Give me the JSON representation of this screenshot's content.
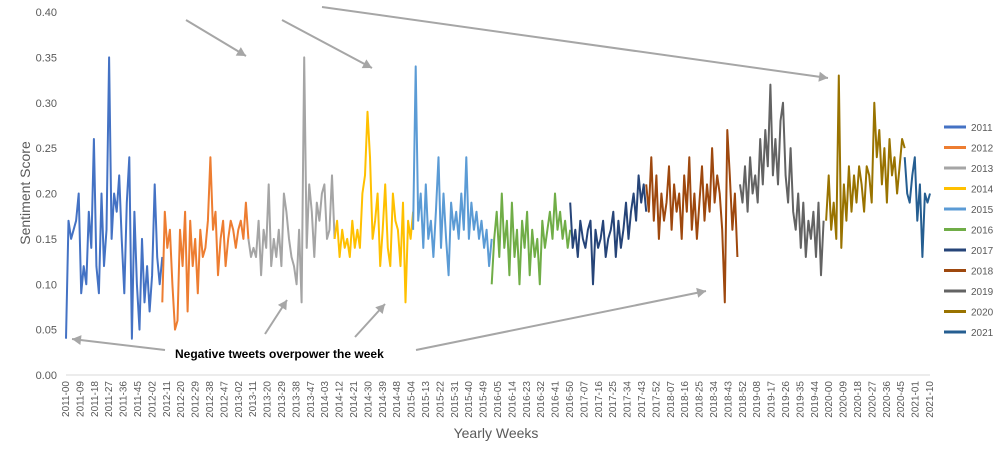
{
  "chart_data": {
    "type": "line",
    "title": "",
    "xlabel": "Yearly Weeks",
    "ylabel": "Sentiment Score",
    "ylim": [
      0,
      0.4
    ],
    "yticks": [
      "0.00",
      "0.05",
      "0.10",
      "0.15",
      "0.20",
      "0.25",
      "0.30",
      "0.35",
      "0.40"
    ],
    "grid": false,
    "legend_position": "right",
    "xtick_labels": [
      "2011-00",
      "2011-09",
      "2011-18",
      "2011-27",
      "2011-36",
      "2011-45",
      "2012-02",
      "2012-11",
      "2012-20",
      "2012-29",
      "2012-38",
      "2012-47",
      "2013-02",
      "2013-11",
      "2013-20",
      "2013-29",
      "2013-38",
      "2013-47",
      "2014-03",
      "2014-12",
      "2014-21",
      "2014-30",
      "2014-39",
      "2014-48",
      "2015-04",
      "2015-13",
      "2015-22",
      "2015-31",
      "2015-40",
      "2015-49",
      "2016-05",
      "2016-14",
      "2016-23",
      "2016-32",
      "2016-41",
      "2016-50",
      "2017-07",
      "2017-16",
      "2017-25",
      "2017-34",
      "2017-43",
      "2017-52",
      "2018-07",
      "2018-16",
      "2018-25",
      "2018-34",
      "2018-43",
      "2018-52",
      "2019-08",
      "2019-17",
      "2019-26",
      "2019-35",
      "2019-44",
      "2020-00",
      "2020-09",
      "2020-18",
      "2020-27",
      "2020-36",
      "2020-45",
      "2021-01",
      "2021-10"
    ],
    "annotation": "Negative tweets overpower the week",
    "series": [
      {
        "name": "2011",
        "color": "#4472C4",
        "start": 0,
        "values": [
          0.04,
          0.17,
          0.15,
          0.16,
          0.17,
          0.2,
          0.09,
          0.12,
          0.1,
          0.18,
          0.14,
          0.26,
          0.12,
          0.09,
          0.2,
          0.12,
          0.16,
          0.35,
          0.15,
          0.2,
          0.18,
          0.22,
          0.15,
          0.09,
          0.19,
          0.24,
          0.04,
          0.18,
          0.1,
          0.05,
          0.15,
          0.08,
          0.12,
          0.07,
          0.11,
          0.21,
          0.13,
          0.1,
          0.13
        ]
      },
      {
        "name": "2012",
        "color": "#ED7D31",
        "start": 38,
        "values": [
          0.08,
          0.18,
          0.14,
          0.16,
          0.1,
          0.05,
          0.06,
          0.16,
          0.12,
          0.18,
          0.07,
          0.17,
          0.12,
          0.15,
          0.09,
          0.16,
          0.13,
          0.14,
          0.17,
          0.24,
          0.16,
          0.18,
          0.11,
          0.15,
          0.17,
          0.12,
          0.15,
          0.17,
          0.16,
          0.14,
          0.16,
          0.17,
          0.15,
          0.19,
          0.15
        ]
      },
      {
        "name": "2013",
        "color": "#A5A5A5",
        "start": 72,
        "values": [
          0.15,
          0.13,
          0.14,
          0.13,
          0.17,
          0.11,
          0.16,
          0.14,
          0.21,
          0.12,
          0.15,
          0.13,
          0.16,
          0.12,
          0.2,
          0.18,
          0.15,
          0.13,
          0.12,
          0.1,
          0.16,
          0.08,
          0.35,
          0.14,
          0.21,
          0.18,
          0.13,
          0.19,
          0.17,
          0.2,
          0.21,
          0.15,
          0.16,
          0.22,
          0.15
        ]
      },
      {
        "name": "2014",
        "color": "#FFC000",
        "start": 106,
        "values": [
          0.15,
          0.17,
          0.13,
          0.16,
          0.14,
          0.15,
          0.13,
          0.17,
          0.14,
          0.16,
          0.14,
          0.2,
          0.22,
          0.29,
          0.24,
          0.15,
          0.17,
          0.2,
          0.12,
          0.16,
          0.21,
          0.14,
          0.12,
          0.2,
          0.17,
          0.16,
          0.12,
          0.19,
          0.08,
          0.17,
          0.15,
          0.18
        ]
      },
      {
        "name": "2015",
        "color": "#5B9BD5",
        "start": 137,
        "values": [
          0.16,
          0.34,
          0.17,
          0.2,
          0.14,
          0.21,
          0.15,
          0.17,
          0.13,
          0.18,
          0.24,
          0.14,
          0.2,
          0.15,
          0.11,
          0.19,
          0.16,
          0.18,
          0.15,
          0.2,
          0.16,
          0.24,
          0.15,
          0.19,
          0.16,
          0.18,
          0.15,
          0.17,
          0.14,
          0.16,
          0.12,
          0.15
        ]
      },
      {
        "name": "2016",
        "color": "#70AD47",
        "start": 168,
        "values": [
          0.1,
          0.15,
          0.18,
          0.13,
          0.2,
          0.14,
          0.17,
          0.11,
          0.19,
          0.13,
          0.16,
          0.1,
          0.17,
          0.14,
          0.18,
          0.11,
          0.16,
          0.13,
          0.15,
          0.1,
          0.17,
          0.14,
          0.16,
          0.18,
          0.15,
          0.2,
          0.16,
          0.18,
          0.15,
          0.17,
          0.14,
          0.16
        ]
      },
      {
        "name": "2017",
        "color": "#264478",
        "start": 199,
        "values": [
          0.19,
          0.14,
          0.16,
          0.13,
          0.17,
          0.15,
          0.14,
          0.16,
          0.17,
          0.1,
          0.16,
          0.14,
          0.15,
          0.17,
          0.13,
          0.15,
          0.16,
          0.18,
          0.13,
          0.17,
          0.14,
          0.16,
          0.19,
          0.15,
          0.18,
          0.2,
          0.17,
          0.22,
          0.19,
          0.21,
          0.18
        ]
      },
      {
        "name": "2018",
        "color": "#9E480E",
        "start": 229,
        "values": [
          0.21,
          0.18,
          0.24,
          0.17,
          0.22,
          0.15,
          0.2,
          0.17,
          0.19,
          0.23,
          0.16,
          0.21,
          0.18,
          0.2,
          0.15,
          0.22,
          0.18,
          0.24,
          0.16,
          0.2,
          0.15,
          0.19,
          0.23,
          0.17,
          0.21,
          0.18,
          0.25,
          0.19,
          0.22,
          0.2,
          0.16,
          0.08,
          0.27,
          0.22,
          0.16,
          0.2,
          0.13
        ]
      },
      {
        "name": "2019",
        "color": "#636363",
        "start": 266,
        "values": [
          0.21,
          0.19,
          0.23,
          0.18,
          0.24,
          0.2,
          0.22,
          0.19,
          0.26,
          0.21,
          0.27,
          0.23,
          0.32,
          0.22,
          0.26,
          0.21,
          0.28,
          0.3,
          0.22,
          0.19,
          0.25,
          0.18,
          0.16,
          0.2,
          0.14,
          0.19,
          0.13,
          0.17,
          0.15,
          0.18,
          0.13,
          0.19,
          0.11,
          0.17
        ]
      },
      {
        "name": "2020",
        "color": "#997300",
        "start": 300,
        "values": [
          0.17,
          0.22,
          0.16,
          0.19,
          0.15,
          0.33,
          0.14,
          0.21,
          0.17,
          0.23,
          0.18,
          0.22,
          0.19,
          0.23,
          0.21,
          0.18,
          0.23,
          0.22,
          0.19,
          0.3,
          0.24,
          0.27,
          0.21,
          0.25,
          0.19,
          0.26,
          0.22,
          0.24,
          0.2,
          0.23,
          0.26,
          0.25
        ]
      },
      {
        "name": "2021",
        "color": "#255E91",
        "start": 331,
        "values": [
          0.24,
          0.2,
          0.19,
          0.22,
          0.24,
          0.17,
          0.21,
          0.13,
          0.2,
          0.19,
          0.2
        ]
      }
    ]
  }
}
